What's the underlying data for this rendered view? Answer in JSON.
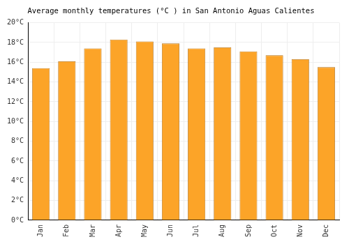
{
  "chart_data": {
    "type": "bar",
    "title": "Average monthly temperatures (°C ) in San Antonio Aguas Calientes",
    "categories": [
      "Jan",
      "Feb",
      "Mar",
      "Apr",
      "May",
      "Jun",
      "Jul",
      "Aug",
      "Sep",
      "Oct",
      "Nov",
      "Dec"
    ],
    "values": [
      15.4,
      16.1,
      17.4,
      18.3,
      18.1,
      17.9,
      17.4,
      17.5,
      17.1,
      16.7,
      16.3,
      15.5
    ],
    "color": "#fca428",
    "ylim": [
      0,
      20
    ],
    "yticks": [
      {
        "value": 0,
        "label": "0°C"
      },
      {
        "value": 2,
        "label": "2°C"
      },
      {
        "value": 4,
        "label": "4°C"
      },
      {
        "value": 6,
        "label": "6°C"
      },
      {
        "value": 8,
        "label": "8°C"
      },
      {
        "value": 10,
        "label": "10°C"
      },
      {
        "value": 12,
        "label": "12°C"
      },
      {
        "value": 14,
        "label": "14°C"
      },
      {
        "value": 16,
        "label": "16°C"
      },
      {
        "value": 18,
        "label": "18°C"
      },
      {
        "value": 20,
        "label": "20°C"
      }
    ],
    "grid": true
  }
}
